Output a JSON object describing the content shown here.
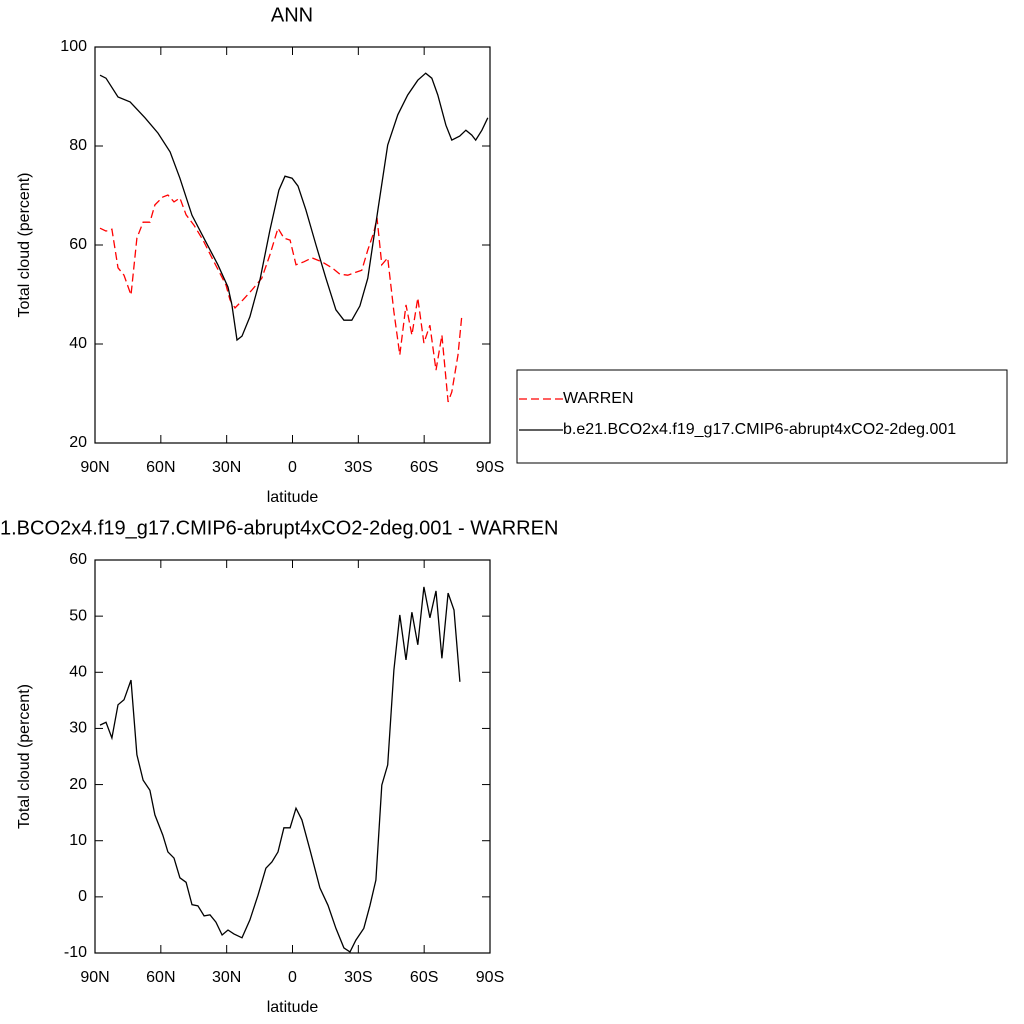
{
  "chart_data": [
    {
      "type": "line",
      "title": "ANN",
      "xlabel": "latitude",
      "ylabel": "Total cloud (percent)",
      "xlim": [
        90,
        -90
      ],
      "xticks": [
        {
          "value": 90,
          "label": "90N"
        },
        {
          "value": 60,
          "label": "60N"
        },
        {
          "value": 30,
          "label": "30N"
        },
        0,
        {
          "value": -30,
          "label": "30S"
        },
        {
          "value": -60,
          "label": "60S"
        },
        {
          "value": -90,
          "label": "90S"
        }
      ],
      "ylim": [
        20,
        100
      ],
      "yticks": [
        20,
        40,
        60,
        80,
        100
      ],
      "legend": "right",
      "series": [
        {
          "name": "WARREN",
          "color": "#ff0000",
          "dash": "dashed",
          "x": [
            87.7,
            85,
            82.3,
            79.5,
            76.8,
            73.6,
            70.9,
            68.1,
            65,
            62.7,
            59.1,
            56.8,
            54,
            51.3,
            48.5,
            44.9,
            40.8,
            36.7,
            33.1,
            30.3,
            28.5,
            26.2,
            22.6,
            18.5,
            14,
            10.3,
            6.6,
            3.9,
            1.1,
            -1.6,
            -5.2,
            -8.9,
            -13.4,
            -18,
            -21.6,
            -25.2,
            -28.9,
            -31.6,
            -34.3,
            -37.1,
            -38.5,
            -40.7,
            -43.4,
            -46.2,
            -48.9,
            -51.7,
            -54.4,
            -57.1,
            -59.9,
            -62.6,
            -65.4,
            -68.1,
            -70.9,
            -72.6,
            -75.4,
            -77.2
          ],
          "values": [
            63.4,
            62.8,
            63.2,
            55.4,
            53.9,
            49.9,
            61.4,
            64.6,
            64.6,
            68.1,
            69.7,
            70.1,
            68.7,
            69.5,
            66.1,
            64,
            61,
            57.4,
            54.3,
            51.9,
            48.9,
            47.3,
            48.9,
            50.9,
            53.3,
            58,
            63.4,
            61.4,
            61,
            56,
            56.6,
            57.4,
            56.6,
            55.4,
            54.1,
            53.9,
            54.5,
            54.9,
            59,
            62.6,
            65.5,
            56,
            57.4,
            46.5,
            37.8,
            47.9,
            41.8,
            49.3,
            40.2,
            43.8,
            34.7,
            41.8,
            28.3,
            30.3,
            37.8,
            45.9
          ]
        },
        {
          "name": "b.e21.BCO2x4.f19_g17.CMIP6-abrupt4xCO2-2deg.001",
          "color": "#000000",
          "dash": "solid",
          "x": [
            87.7,
            85,
            79.5,
            74,
            67.2,
            61.3,
            55.8,
            51.3,
            45.8,
            39.9,
            34,
            29.4,
            27.6,
            25.3,
            23,
            19.4,
            14.8,
            10.3,
            6.2,
            3.4,
            0.2,
            -2.5,
            -6.1,
            -10.7,
            -15.2,
            -19.8,
            -23.4,
            -27,
            -30.7,
            -34.3,
            -38.9,
            -43.4,
            -48,
            -52.5,
            -57.1,
            -60.7,
            -63.5,
            -66.2,
            -69.9,
            -72.6,
            -76.2,
            -79,
            -81.7,
            -83.5,
            -86.3,
            -89
          ],
          "values": [
            94.3,
            93.7,
            89.9,
            88.9,
            85.7,
            82.6,
            78.8,
            73.5,
            66,
            61,
            56,
            51.5,
            47.9,
            40.8,
            41.6,
            45.5,
            53,
            63,
            71.1,
            73.9,
            73.5,
            71.9,
            67.1,
            60,
            53.3,
            46.9,
            44.8,
            44.8,
            47.7,
            53.3,
            67.1,
            80.2,
            86.3,
            90.3,
            93.3,
            94.7,
            93.7,
            90.3,
            84.2,
            81.2,
            82,
            83.2,
            82.2,
            81.2,
            83.2,
            85.7
          ]
        }
      ]
    },
    {
      "type": "line",
      "title": "1.BCO2x4.f19_g17.CMIP6-abrupt4xCO2-2deg.001 - WARREN",
      "xlabel": "latitude",
      "ylabel": "Total cloud (percent)",
      "xlim": [
        90,
        -90
      ],
      "xticks": [
        {
          "value": 90,
          "label": "90N"
        },
        {
          "value": 60,
          "label": "60N"
        },
        {
          "value": 30,
          "label": "30N"
        },
        0,
        {
          "value": -30,
          "label": "30S"
        },
        {
          "value": -60,
          "label": "60S"
        },
        {
          "value": -90,
          "label": "90S"
        }
      ],
      "ylim": [
        -10,
        60
      ],
      "yticks": [
        -10,
        0,
        10,
        20,
        30,
        40,
        50,
        60
      ],
      "series": [
        {
          "color": "#000000",
          "dash": "solid",
          "x": [
            87.7,
            85,
            82.3,
            79.5,
            76.8,
            73.6,
            70.9,
            68.1,
            65,
            62.7,
            59.1,
            56.8,
            54,
            51.3,
            48.5,
            45.8,
            43.1,
            40.3,
            37.6,
            34.9,
            32.1,
            29.4,
            26.7,
            23,
            19.4,
            15.7,
            12.1,
            9.4,
            6.6,
            3.9,
            1.1,
            -1.6,
            -4.3,
            -8,
            -12.5,
            -16.2,
            -19.8,
            -23.4,
            -26.2,
            -28.9,
            -32.5,
            -35.3,
            -38,
            -40.7,
            -43.4,
            -46.2,
            -48.9,
            -51.7,
            -54.4,
            -57.1,
            -59.9,
            -62.6,
            -65.4,
            -68.1,
            -70.9,
            -73.6,
            -76.3
          ],
          "values": [
            30.6,
            31.1,
            28.3,
            34.2,
            35.1,
            38.6,
            25.3,
            20.8,
            19,
            14.6,
            11,
            8,
            6.9,
            3.4,
            2.6,
            -1.4,
            -1.6,
            -3.4,
            -3.2,
            -4.5,
            -6.8,
            -5.9,
            -6.6,
            -7.3,
            -4.1,
            0.3,
            5.1,
            6.2,
            8,
            12.3,
            12.3,
            15.8,
            13.7,
            8.3,
            1.6,
            -1.5,
            -5.6,
            -9.1,
            -9.8,
            -7.7,
            -5.6,
            -1.5,
            3,
            19.9,
            23.5,
            40.4,
            50.2,
            42.2,
            50.7,
            44.9,
            55.2,
            49.7,
            54.5,
            42.5,
            54.1,
            51.1,
            38.3
          ]
        }
      ]
    }
  ]
}
